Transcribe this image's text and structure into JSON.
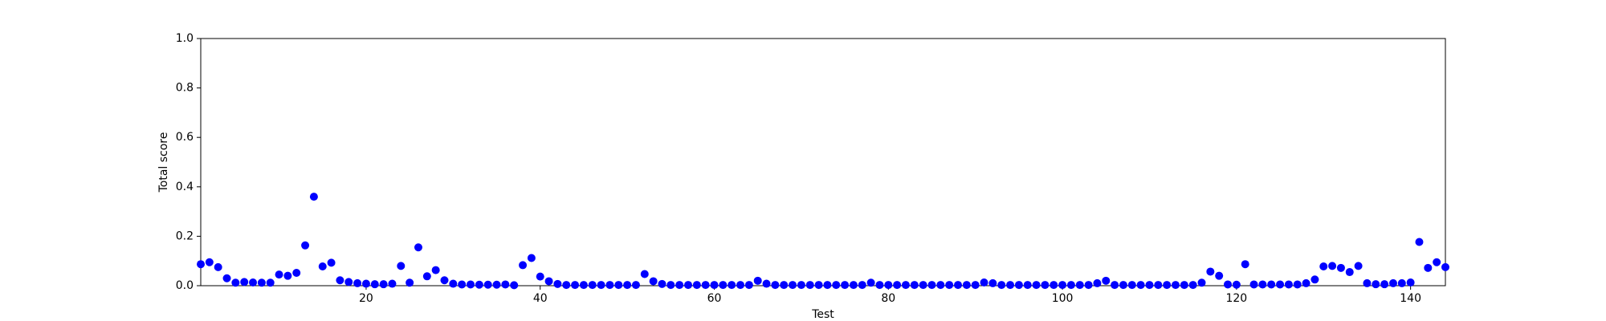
{
  "chart_data": {
    "type": "scatter",
    "xlabel": "Test",
    "ylabel": "Total score",
    "color": "#0000ff",
    "x": [
      1,
      2,
      3,
      4,
      5,
      6,
      7,
      8,
      9,
      10,
      11,
      12,
      13,
      14,
      15,
      16,
      17,
      18,
      19,
      20,
      21,
      22,
      23,
      24,
      25,
      26,
      27,
      28,
      29,
      30,
      31,
      32,
      33,
      34,
      35,
      36,
      37,
      38,
      39,
      40,
      41,
      42,
      43,
      44,
      45,
      46,
      47,
      48,
      49,
      50,
      51,
      52,
      53,
      54,
      55,
      56,
      57,
      58,
      59,
      60,
      61,
      62,
      63,
      64,
      65,
      66,
      67,
      68,
      69,
      70,
      71,
      72,
      73,
      74,
      75,
      76,
      77,
      78,
      79,
      80,
      81,
      82,
      83,
      84,
      85,
      86,
      87,
      88,
      89,
      90,
      91,
      92,
      93,
      94,
      95,
      96,
      97,
      98,
      99,
      100,
      101,
      102,
      103,
      104,
      105,
      106,
      107,
      108,
      109,
      110,
      111,
      112,
      113,
      114,
      115,
      116,
      117,
      118,
      119,
      120,
      121,
      122,
      123,
      124,
      125,
      126,
      127,
      128,
      129,
      130,
      131,
      132,
      133,
      134,
      135,
      136,
      137,
      138,
      139,
      140,
      141,
      142,
      143,
      144
    ],
    "values": [
      0.087,
      0.095,
      0.075,
      0.03,
      0.012,
      0.015,
      0.013,
      0.012,
      0.012,
      0.045,
      0.04,
      0.052,
      0.163,
      0.36,
      0.078,
      0.093,
      0.022,
      0.015,
      0.01,
      0.008,
      0.006,
      0.006,
      0.008,
      0.08,
      0.012,
      0.155,
      0.038,
      0.063,
      0.022,
      0.008,
      0.005,
      0.005,
      0.004,
      0.004,
      0.004,
      0.005,
      0.002,
      0.083,
      0.112,
      0.037,
      0.018,
      0.007,
      0.003,
      0.003,
      0.003,
      0.003,
      0.003,
      0.003,
      0.003,
      0.003,
      0.003,
      0.047,
      0.018,
      0.007,
      0.003,
      0.003,
      0.003,
      0.003,
      0.003,
      0.003,
      0.003,
      0.003,
      0.003,
      0.003,
      0.02,
      0.008,
      0.003,
      0.003,
      0.003,
      0.003,
      0.003,
      0.003,
      0.003,
      0.003,
      0.003,
      0.003,
      0.003,
      0.012,
      0.003,
      0.003,
      0.003,
      0.003,
      0.003,
      0.003,
      0.003,
      0.003,
      0.003,
      0.003,
      0.003,
      0.003,
      0.013,
      0.01,
      0.003,
      0.003,
      0.003,
      0.003,
      0.003,
      0.003,
      0.003,
      0.003,
      0.003,
      0.003,
      0.003,
      0.01,
      0.02,
      0.003,
      0.003,
      0.003,
      0.003,
      0.003,
      0.003,
      0.003,
      0.003,
      0.003,
      0.003,
      0.012,
      0.057,
      0.04,
      0.005,
      0.004,
      0.087,
      0.005,
      0.005,
      0.005,
      0.005,
      0.005,
      0.005,
      0.01,
      0.025,
      0.078,
      0.08,
      0.072,
      0.055,
      0.08,
      0.01,
      0.006,
      0.006,
      0.01,
      0.01,
      0.013,
      0.177,
      0.072,
      0.095,
      0.075
    ],
    "xlim": [
      1,
      144
    ],
    "xticks": [
      20,
      40,
      60,
      80,
      100,
      120,
      140
    ],
    "ylim": [
      0,
      1
    ],
    "yticks": [
      {
        "value": 0,
        "label": "0.0"
      },
      0.2,
      0.4,
      0.6,
      0.8,
      {
        "value": 1,
        "label": "1.0"
      }
    ]
  }
}
